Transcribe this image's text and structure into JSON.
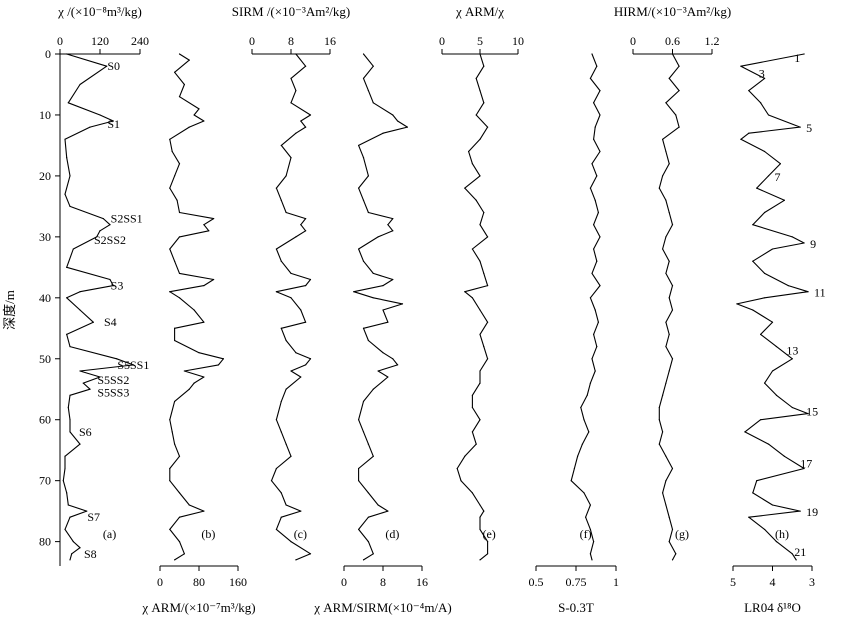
{
  "chart_data": {
    "type": "line",
    "ylabel": "深度/m",
    "depth_ticks": [
      "0",
      "10",
      "20",
      "30",
      "40",
      "50",
      "60",
      "70",
      "80"
    ],
    "depth_range": [
      0,
      84
    ],
    "panels": [
      {
        "id": "a",
        "letter": "(a)",
        "title": "χ /(×10⁻⁸m³/kg)",
        "title_position": "top",
        "tick_labels": [
          "0",
          "120",
          "240"
        ],
        "xlim": [
          0,
          240
        ],
        "series": {
          "depth": [
            0,
            2,
            5,
            8,
            10,
            11,
            12,
            14,
            17,
            20,
            23,
            25,
            27,
            28,
            29,
            30,
            32,
            35,
            37,
            38,
            39,
            40,
            42,
            44,
            46,
            48,
            50,
            51,
            52,
            53,
            54,
            55,
            56,
            58,
            60,
            62,
            64,
            66,
            68,
            70,
            72,
            74,
            75,
            76,
            78,
            80,
            81,
            82,
            83
          ],
          "value": [
            20,
            140,
            60,
            25,
            120,
            160,
            90,
            15,
            20,
            30,
            15,
            30,
            130,
            150,
            120,
            110,
            40,
            20,
            150,
            160,
            60,
            20,
            60,
            100,
            20,
            30,
            170,
            220,
            60,
            120,
            70,
            90,
            30,
            25,
            30,
            30,
            60,
            15,
            15,
            10,
            20,
            25,
            80,
            30,
            15,
            40,
            60,
            35,
            30
          ]
        },
        "labels": [
          {
            "depth": 2,
            "value": 130,
            "text": "S0"
          },
          {
            "depth": 11.5,
            "value": 130,
            "text": "S1"
          },
          {
            "depth": 27,
            "value": 140,
            "text": "S2SS1"
          },
          {
            "depth": 30.5,
            "value": 90,
            "text": "S2SS2"
          },
          {
            "depth": 38,
            "value": 140,
            "text": "S3"
          },
          {
            "depth": 44,
            "value": 120,
            "text": "S4"
          },
          {
            "depth": 51,
            "value": 160,
            "text": "S5SS1"
          },
          {
            "depth": 53.5,
            "value": 100,
            "text": "S5SS2"
          },
          {
            "depth": 55.5,
            "value": 100,
            "text": "S5SS3"
          },
          {
            "depth": 62,
            "value": 45,
            "text": "S6"
          },
          {
            "depth": 76,
            "value": 70,
            "text": "S7"
          },
          {
            "depth": 82,
            "value": 60,
            "text": "S8"
          }
        ]
      },
      {
        "id": "b",
        "letter": "(b)",
        "title": "χ ARM/(×10⁻⁷m³/kg)",
        "title_position": "bottom",
        "tick_labels": [
          "0",
          "80",
          "160"
        ],
        "xlim": [
          0,
          160
        ],
        "series": {
          "depth": [
            0,
            1,
            3,
            5,
            7,
            9,
            10,
            11,
            12,
            14,
            16,
            18,
            20,
            22,
            24,
            26,
            27,
            28,
            29,
            30,
            32,
            34,
            36,
            37,
            38,
            39,
            40,
            42,
            44,
            45,
            47,
            49,
            50,
            51,
            52,
            53,
            54,
            55,
            57,
            60,
            62,
            64,
            66,
            68,
            70,
            72,
            74,
            75,
            76,
            78,
            80,
            82,
            83
          ],
          "value": [
            40,
            60,
            30,
            50,
            40,
            80,
            70,
            90,
            60,
            20,
            25,
            40,
            30,
            20,
            35,
            40,
            110,
            90,
            100,
            40,
            20,
            30,
            40,
            110,
            90,
            20,
            40,
            70,
            90,
            30,
            30,
            80,
            130,
            120,
            50,
            90,
            70,
            60,
            30,
            20,
            25,
            30,
            40,
            20,
            20,
            40,
            60,
            90,
            40,
            20,
            40,
            50,
            30
          ]
        }
      },
      {
        "id": "c",
        "letter": "(c)",
        "title": "SIRM /(×10⁻³Am²/kg)",
        "title_position": "top",
        "tick_labels": [
          "0",
          "8",
          "16"
        ],
        "xlim": [
          0,
          16
        ],
        "series": {
          "depth": [
            0,
            2,
            4,
            6,
            8,
            10,
            11,
            12,
            13,
            15,
            17,
            20,
            22,
            24,
            26,
            27,
            28,
            29,
            30,
            32,
            34,
            36,
            37,
            38,
            39,
            40,
            42,
            44,
            45,
            47,
            49,
            50,
            51,
            52,
            53,
            55,
            57,
            60,
            62,
            64,
            66,
            68,
            70,
            72,
            74,
            75,
            76,
            78,
            80,
            82,
            83
          ],
          "value": [
            9,
            11,
            8,
            9,
            8,
            12,
            10,
            11,
            9,
            6,
            8,
            7,
            5,
            6,
            7,
            11,
            10,
            11,
            9,
            5,
            6,
            8,
            12,
            11,
            5,
            8,
            10,
            11,
            6,
            7,
            9,
            12,
            11,
            8,
            10,
            7,
            6,
            5,
            6,
            7,
            8,
            5,
            4,
            6,
            7,
            10,
            6,
            5,
            8,
            12,
            9
          ]
        }
      },
      {
        "id": "d",
        "letter": "(d)",
        "title": "χ ARM/SIRM(×10⁻⁴m/A)",
        "title_position": "bottom",
        "tick_labels": [
          "0",
          "8",
          "16"
        ],
        "xlim": [
          0,
          16
        ],
        "series": {
          "depth": [
            0,
            2,
            4,
            6,
            8,
            10,
            11,
            12,
            13,
            15,
            17,
            20,
            22,
            24,
            26,
            27,
            28,
            29,
            30,
            32,
            34,
            36,
            37,
            38,
            39,
            40,
            41,
            42,
            44,
            45,
            47,
            49,
            50,
            51,
            52,
            53,
            55,
            57,
            60,
            62,
            64,
            66,
            68,
            70,
            72,
            74,
            75,
            76,
            78,
            80,
            82,
            83
          ],
          "value": [
            4,
            6,
            4,
            5,
            6,
            10,
            11,
            13,
            8,
            3,
            4,
            5,
            3,
            4,
            5,
            10,
            9,
            10,
            7,
            3,
            4,
            6,
            10,
            8,
            2,
            6,
            12,
            8,
            9,
            4,
            5,
            8,
            10,
            11,
            7,
            9,
            6,
            4,
            3,
            4,
            5,
            6,
            3,
            3,
            5,
            7,
            9,
            5,
            3,
            5,
            6,
            4
          ]
        }
      },
      {
        "id": "e",
        "letter": "(e)",
        "title": "χ ARM/χ",
        "title_position": "top",
        "tick_labels": [
          "0",
          "5",
          "10"
        ],
        "xlim": [
          0,
          10
        ],
        "series": {
          "depth": [
            0,
            2,
            4,
            6,
            8,
            10,
            12,
            14,
            16,
            18,
            20,
            22,
            24,
            26,
            28,
            30,
            32,
            34,
            36,
            38,
            39,
            40,
            42,
            44,
            46,
            48,
            50,
            52,
            54,
            56,
            58,
            60,
            62,
            64,
            66,
            68,
            70,
            72,
            74,
            75,
            76,
            78,
            80,
            82,
            83
          ],
          "value": [
            5,
            5.5,
            4.5,
            5,
            5.5,
            4.5,
            6,
            5,
            3.5,
            4,
            5,
            3,
            4.5,
            5.5,
            5,
            6,
            4,
            5,
            5.5,
            6,
            3,
            4,
            5,
            6,
            5,
            5.5,
            6,
            5,
            5,
            4,
            4,
            5,
            4,
            4.5,
            3,
            2,
            2.5,
            4,
            5,
            5.5,
            5,
            5,
            6,
            6,
            5
          ]
        }
      },
      {
        "id": "f",
        "letter": "(f)",
        "title": "S-0.3T",
        "title_position": "bottom",
        "tick_labels": [
          "0.5",
          "0.75",
          "1"
        ],
        "xlim": [
          0.5,
          1
        ],
        "series": {
          "depth": [
            0,
            2,
            4,
            6,
            8,
            10,
            12,
            14,
            16,
            18,
            20,
            22,
            24,
            26,
            28,
            30,
            32,
            34,
            36,
            38,
            40,
            42,
            44,
            46,
            48,
            50,
            52,
            54,
            56,
            58,
            60,
            62,
            64,
            66,
            68,
            70,
            72,
            74,
            76,
            78,
            80,
            82,
            83
          ],
          "value": [
            0.85,
            0.88,
            0.84,
            0.9,
            0.86,
            0.9,
            0.87,
            0.86,
            0.9,
            0.85,
            0.88,
            0.84,
            0.87,
            0.89,
            0.86,
            0.9,
            0.86,
            0.88,
            0.85,
            0.9,
            0.84,
            0.87,
            0.89,
            0.86,
            0.88,
            0.85,
            0.87,
            0.84,
            0.82,
            0.78,
            0.8,
            0.83,
            0.79,
            0.76,
            0.74,
            0.72,
            0.8,
            0.84,
            0.81,
            0.84,
            0.86,
            0.84,
            0.85
          ]
        }
      },
      {
        "id": "g",
        "letter": "(g)",
        "title": "HIRM/(×10⁻³Am²/kg)",
        "title_position": "top",
        "tick_labels": [
          "0",
          "0.6",
          "1.2"
        ],
        "xlim": [
          0,
          1.2
        ],
        "series": {
          "depth": [
            0,
            2,
            4,
            6,
            8,
            10,
            12,
            14,
            16,
            18,
            20,
            22,
            24,
            26,
            28,
            30,
            32,
            34,
            36,
            38,
            40,
            42,
            44,
            46,
            48,
            50,
            52,
            54,
            56,
            58,
            60,
            62,
            64,
            66,
            68,
            70,
            72,
            74,
            76,
            78,
            80,
            82,
            83
          ],
          "value": [
            0.6,
            0.7,
            0.55,
            0.7,
            0.5,
            0.65,
            0.7,
            0.45,
            0.5,
            0.55,
            0.45,
            0.4,
            0.5,
            0.55,
            0.6,
            0.5,
            0.45,
            0.55,
            0.5,
            0.6,
            0.55,
            0.6,
            0.5,
            0.55,
            0.5,
            0.6,
            0.55,
            0.5,
            0.45,
            0.4,
            0.4,
            0.45,
            0.4,
            0.5,
            0.6,
            0.5,
            0.45,
            0.5,
            0.55,
            0.6,
            0.55,
            0.65,
            0.6
          ]
        }
      },
      {
        "id": "h",
        "letter": "(h)",
        "title": "LR04 δ¹⁸O",
        "title_position": "bottom",
        "tick_labels": [
          "5",
          "4",
          "3"
        ],
        "xlim": [
          5,
          3
        ],
        "series": {
          "depth": [
            0,
            2,
            4,
            6,
            8,
            10,
            12,
            13,
            14,
            16,
            18,
            20,
            22,
            24,
            26,
            28,
            30,
            31,
            32,
            34,
            36,
            38,
            39,
            40,
            41,
            42,
            44,
            46,
            48,
            50,
            52,
            54,
            56,
            58,
            59,
            60,
            62,
            64,
            66,
            68,
            70,
            72,
            74,
            75,
            76,
            78,
            80,
            82,
            83
          ],
          "value": [
            3.2,
            4.8,
            4.2,
            4.6,
            4.3,
            4.1,
            3.3,
            4.6,
            4.8,
            4.2,
            3.8,
            4.1,
            4.4,
            3.7,
            4.2,
            4.5,
            3.5,
            3.2,
            4.0,
            4.5,
            4.2,
            3.6,
            3.1,
            4.2,
            4.9,
            4.5,
            4.0,
            4.3,
            3.9,
            3.5,
            4.0,
            4.2,
            3.9,
            3.5,
            3.1,
            4.3,
            4.7,
            4.1,
            3.7,
            3.2,
            4.4,
            4.5,
            4.0,
            3.3,
            4.6,
            4.2,
            3.9,
            3.5,
            3.4
          ]
        },
        "stage_labels": [
          {
            "depth": 0.5,
            "text": "1"
          },
          {
            "depth": 3,
            "text": "3"
          },
          {
            "depth": 12,
            "text": "5"
          },
          {
            "depth": 20,
            "text": "7"
          },
          {
            "depth": 31,
            "text": "9"
          },
          {
            "depth": 39,
            "text": "11"
          },
          {
            "depth": 48.5,
            "text": "13"
          },
          {
            "depth": 58.5,
            "text": "15"
          },
          {
            "depth": 67,
            "text": "17"
          },
          {
            "depth": 75,
            "text": "19"
          },
          {
            "depth": 81.5,
            "text": "21"
          }
        ]
      }
    ]
  }
}
